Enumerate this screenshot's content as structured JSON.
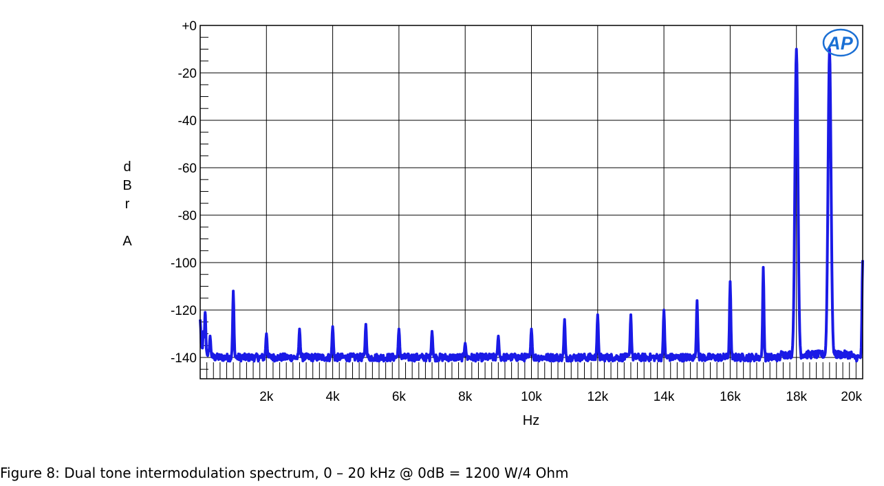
{
  "caption": "Figure 8: Dual tone intermodulation spectrum, 0 – 20 kHz @ 0dB = 1200 W/4 Ohm",
  "logo_text": "AP",
  "chart_data": {
    "type": "line",
    "xlabel": "Hz",
    "ylabel": "dBr A",
    "ylabel_chars": [
      "d",
      "B",
      "r",
      "",
      "A"
    ],
    "xlim": [
      0,
      20000
    ],
    "ylim": [
      -149,
      0
    ],
    "grid": true,
    "x_ticks": [
      {
        "value": 2000,
        "label": "2k"
      },
      {
        "value": 4000,
        "label": "4k"
      },
      {
        "value": 6000,
        "label": "6k"
      },
      {
        "value": 8000,
        "label": "8k"
      },
      {
        "value": 10000,
        "label": "10k"
      },
      {
        "value": 12000,
        "label": "12k"
      },
      {
        "value": 14000,
        "label": "14k"
      },
      {
        "value": 16000,
        "label": "16k"
      },
      {
        "value": 18000,
        "label": "18k"
      },
      {
        "value": 20000,
        "label": "20k"
      }
    ],
    "y_ticks": [
      {
        "value": 0,
        "label": "+0"
      },
      {
        "value": -20,
        "label": "-20"
      },
      {
        "value": -40,
        "label": "-40"
      },
      {
        "value": -60,
        "label": "-60"
      },
      {
        "value": -80,
        "label": "-80"
      },
      {
        "value": -100,
        "label": "-100"
      },
      {
        "value": -120,
        "label": "-120"
      },
      {
        "value": -140,
        "label": "-140"
      }
    ],
    "series": [
      {
        "color": "#1a1ae6",
        "noise_floor": -140,
        "peaks": [
          [
            0,
            -124
          ],
          [
            100,
            -129
          ],
          [
            150,
            -121
          ],
          [
            300,
            -131
          ],
          [
            1000,
            -112
          ],
          [
            2000,
            -130
          ],
          [
            3000,
            -128
          ],
          [
            4000,
            -127
          ],
          [
            5000,
            -126
          ],
          [
            6000,
            -128
          ],
          [
            7000,
            -129
          ],
          [
            8000,
            -134
          ],
          [
            9000,
            -131
          ],
          [
            10000,
            -128
          ],
          [
            11000,
            -124
          ],
          [
            12000,
            -122
          ],
          [
            13000,
            -122
          ],
          [
            14000,
            -120
          ],
          [
            15000,
            -116
          ],
          [
            16000,
            -108
          ],
          [
            17000,
            -102
          ],
          [
            18000,
            -10
          ],
          [
            19000,
            -10
          ],
          [
            20000,
            -99
          ]
        ]
      }
    ]
  }
}
